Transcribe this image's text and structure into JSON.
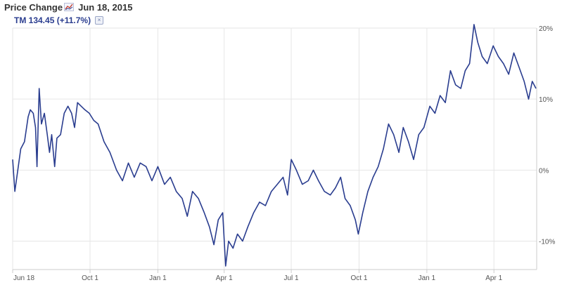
{
  "header": {
    "title": "Price Change",
    "date": "Jun 18, 2015",
    "series_label": "TM 134.45 (+11.7%)",
    "close_glyph": "×"
  },
  "colors": {
    "line": "#2a3d8f",
    "grid": "#e6e6e6",
    "axis": "#cccccc"
  },
  "icons": {
    "chart": "chart-icon",
    "close": "close-icon"
  },
  "chart_data": {
    "type": "line",
    "title": "Price Change",
    "xlabel": "",
    "ylabel": "",
    "x_tick_labels": [
      "Jun 18",
      "Oct 1",
      "Jan 1",
      "Apr 1",
      "Jul 1",
      "Oct 1",
      "Jan 1",
      "Apr 1"
    ],
    "x_tick_dates": [
      "2014-06-18",
      "2014-10-01",
      "2015-01-01",
      "2015-04-01",
      "2015-07-01",
      "2015-10-01",
      "2016-01-01",
      "2016-04-01"
    ],
    "y_tick_labels": [
      "20%",
      "10%",
      "0%",
      "-10%"
    ],
    "y_ticks": [
      20,
      10,
      0,
      -10
    ],
    "ylim": [
      -14,
      20
    ],
    "y_axis_side": "right",
    "grid": true,
    "series": [
      {
        "name": "TM 134.45 (+11.7%)",
        "points": [
          [
            "2014-06-18",
            1.5
          ],
          [
            "2014-06-21",
            -3
          ],
          [
            "2014-06-25",
            0
          ],
          [
            "2014-06-29",
            3
          ],
          [
            "2014-07-04",
            4
          ],
          [
            "2014-07-09",
            7.5
          ],
          [
            "2014-07-12",
            8.5
          ],
          [
            "2014-07-16",
            8
          ],
          [
            "2014-07-19",
            6
          ],
          [
            "2014-07-21",
            0.5
          ],
          [
            "2014-07-24",
            11.5
          ],
          [
            "2014-07-27",
            6.5
          ],
          [
            "2014-07-31",
            8
          ],
          [
            "2014-08-04",
            5
          ],
          [
            "2014-08-07",
            2.5
          ],
          [
            "2014-08-10",
            5
          ],
          [
            "2014-08-14",
            0.5
          ],
          [
            "2014-08-17",
            4.5
          ],
          [
            "2014-08-22",
            5
          ],
          [
            "2014-08-27",
            8
          ],
          [
            "2014-09-01",
            9
          ],
          [
            "2014-09-06",
            8
          ],
          [
            "2014-09-10",
            6
          ],
          [
            "2014-09-14",
            9.5
          ],
          [
            "2014-09-19",
            9
          ],
          [
            "2014-09-24",
            8.5
          ],
          [
            "2014-09-30",
            8
          ],
          [
            "2014-10-06",
            7
          ],
          [
            "2014-10-12",
            6.5
          ],
          [
            "2014-10-20",
            4
          ],
          [
            "2014-10-28",
            2.5
          ],
          [
            "2014-11-06",
            0
          ],
          [
            "2014-11-14",
            -1.5
          ],
          [
            "2014-11-22",
            1
          ],
          [
            "2014-11-30",
            -1
          ],
          [
            "2014-12-08",
            1
          ],
          [
            "2014-12-16",
            0.5
          ],
          [
            "2014-12-24",
            -1.5
          ],
          [
            "2015-01-01",
            0.5
          ],
          [
            "2015-01-10",
            -2
          ],
          [
            "2015-01-18",
            -1
          ],
          [
            "2015-01-26",
            -3
          ],
          [
            "2015-02-03",
            -4
          ],
          [
            "2015-02-10",
            -6.5
          ],
          [
            "2015-02-17",
            -3
          ],
          [
            "2015-02-25",
            -4
          ],
          [
            "2015-03-05",
            -6
          ],
          [
            "2015-03-12",
            -8
          ],
          [
            "2015-03-18",
            -10.5
          ],
          [
            "2015-03-24",
            -7
          ],
          [
            "2015-03-30",
            -6
          ],
          [
            "2015-04-03",
            -13.5
          ],
          [
            "2015-04-07",
            -10
          ],
          [
            "2015-04-13",
            -11
          ],
          [
            "2015-04-19",
            -9
          ],
          [
            "2015-04-26",
            -10
          ],
          [
            "2015-05-03",
            -8
          ],
          [
            "2015-05-11",
            -6
          ],
          [
            "2015-05-19",
            -4.5
          ],
          [
            "2015-05-27",
            -5
          ],
          [
            "2015-06-04",
            -3
          ],
          [
            "2015-06-12",
            -2
          ],
          [
            "2015-06-20",
            -1
          ],
          [
            "2015-06-26",
            -3.5
          ],
          [
            "2015-07-01",
            1.5
          ],
          [
            "2015-07-08",
            0
          ],
          [
            "2015-07-16",
            -2
          ],
          [
            "2015-07-24",
            -1.5
          ],
          [
            "2015-07-31",
            0
          ],
          [
            "2015-08-07",
            -1.5
          ],
          [
            "2015-08-15",
            -3
          ],
          [
            "2015-08-23",
            -3.5
          ],
          [
            "2015-08-30",
            -2.5
          ],
          [
            "2015-09-06",
            -1
          ],
          [
            "2015-09-12",
            -4
          ],
          [
            "2015-09-19",
            -5
          ],
          [
            "2015-09-26",
            -7
          ],
          [
            "2015-09-30",
            -9
          ],
          [
            "2015-10-06",
            -6
          ],
          [
            "2015-10-13",
            -3
          ],
          [
            "2015-10-20",
            -1
          ],
          [
            "2015-10-27",
            0.5
          ],
          [
            "2015-11-03",
            3
          ],
          [
            "2015-11-10",
            6.5
          ],
          [
            "2015-11-17",
            5
          ],
          [
            "2015-11-24",
            2.5
          ],
          [
            "2015-11-30",
            6
          ],
          [
            "2015-12-07",
            4
          ],
          [
            "2015-12-14",
            1.5
          ],
          [
            "2015-12-21",
            5
          ],
          [
            "2015-12-28",
            6
          ],
          [
            "2016-01-05",
            9
          ],
          [
            "2016-01-12",
            8
          ],
          [
            "2016-01-19",
            10.5
          ],
          [
            "2016-01-26",
            9.5
          ],
          [
            "2016-02-02",
            14
          ],
          [
            "2016-02-09",
            12
          ],
          [
            "2016-02-16",
            11.5
          ],
          [
            "2016-02-22",
            14
          ],
          [
            "2016-02-28",
            15
          ],
          [
            "2016-03-05",
            20.5
          ],
          [
            "2016-03-10",
            18
          ],
          [
            "2016-03-16",
            16
          ],
          [
            "2016-03-23",
            15
          ],
          [
            "2016-03-31",
            17.5
          ],
          [
            "2016-04-07",
            16
          ],
          [
            "2016-04-14",
            15
          ],
          [
            "2016-04-21",
            13.5
          ],
          [
            "2016-04-28",
            16.5
          ],
          [
            "2016-05-05",
            14.5
          ],
          [
            "2016-05-12",
            12.5
          ],
          [
            "2016-05-18",
            10
          ],
          [
            "2016-05-23",
            12.5
          ],
          [
            "2016-05-28",
            11.5
          ]
        ]
      }
    ]
  }
}
